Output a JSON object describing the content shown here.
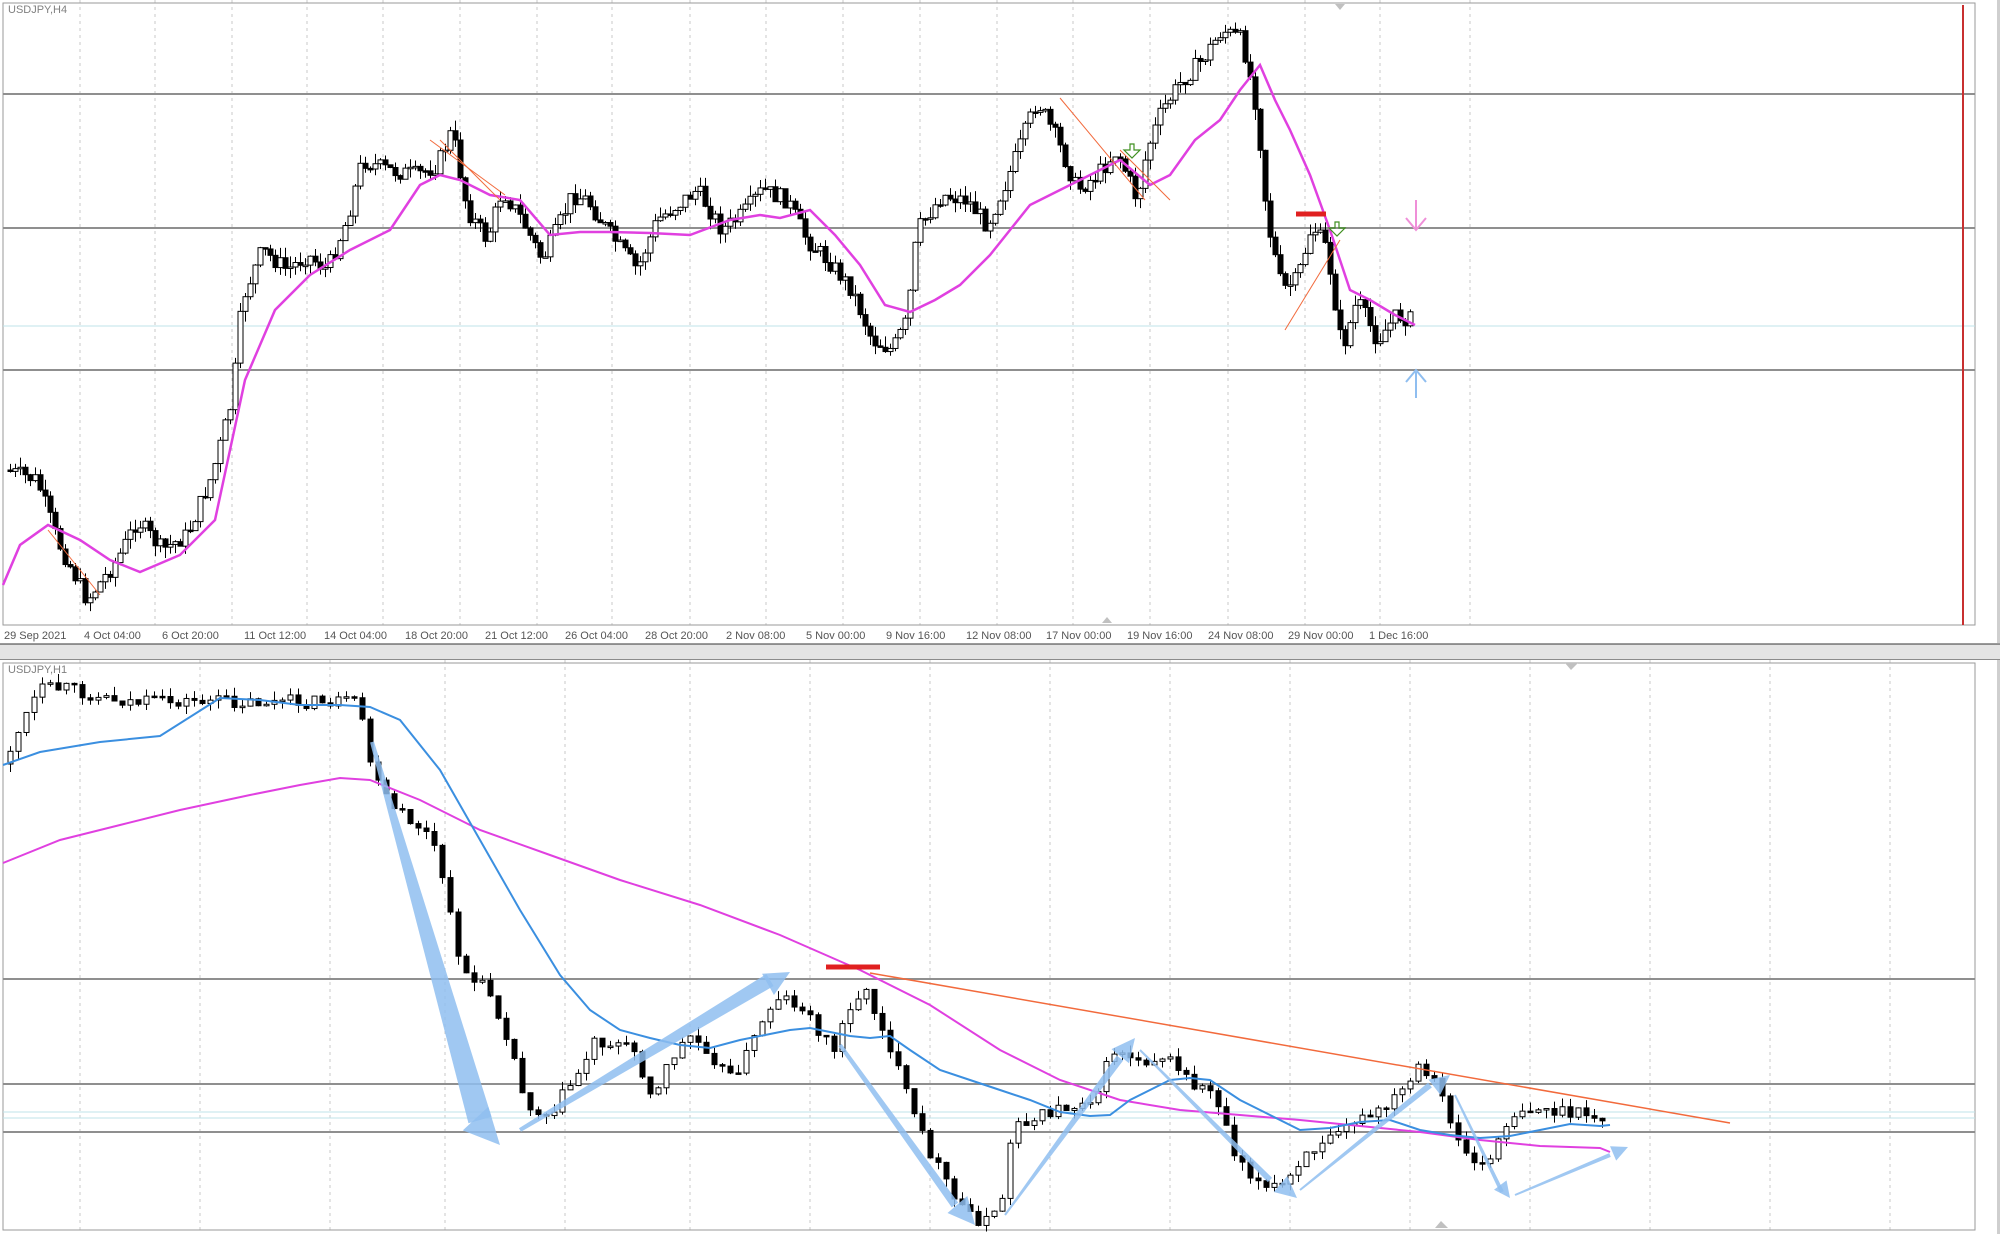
{
  "panes": [
    {
      "label": "USDJPY,H4",
      "xaxis_labels": [
        "29 Sep 2021",
        "4 Oct 04:00",
        "6 Oct 20:00",
        "11 Oct 12:00",
        "14 Oct 04:00",
        "18 Oct 20:00",
        "21 Oct 12:00",
        "26 Oct 04:00",
        "28 Oct 20:00",
        "2 Nov 08:00",
        "5 Nov 00:00",
        "9 Nov 16:00",
        "12 Nov 08:00",
        "17 Nov 00:00",
        "19 Nov 16:00",
        "24 Nov 08:00",
        "29 Nov 00:00",
        "1 Dec 16:00"
      ]
    },
    {
      "label": "USDJPY,H1"
    }
  ],
  "colors": {
    "candle_up_body": "#ffffff",
    "candle_down_body": "#000000",
    "slow_ma": "#e040e0",
    "fast_ma": "#3b8fe0",
    "trendline": "#f26a3c",
    "horizontal_level": "#8f8f8f",
    "marker_red": "#e02020",
    "arrow_blue": "#8fbef0",
    "arrow_pink": "#ef8fd8",
    "vline_red": "#c83030",
    "signal_green": "#3f8f20"
  },
  "icons": [
    "arrow-down-icon",
    "arrow-up-icon",
    "signal-arrow-icon"
  ]
}
